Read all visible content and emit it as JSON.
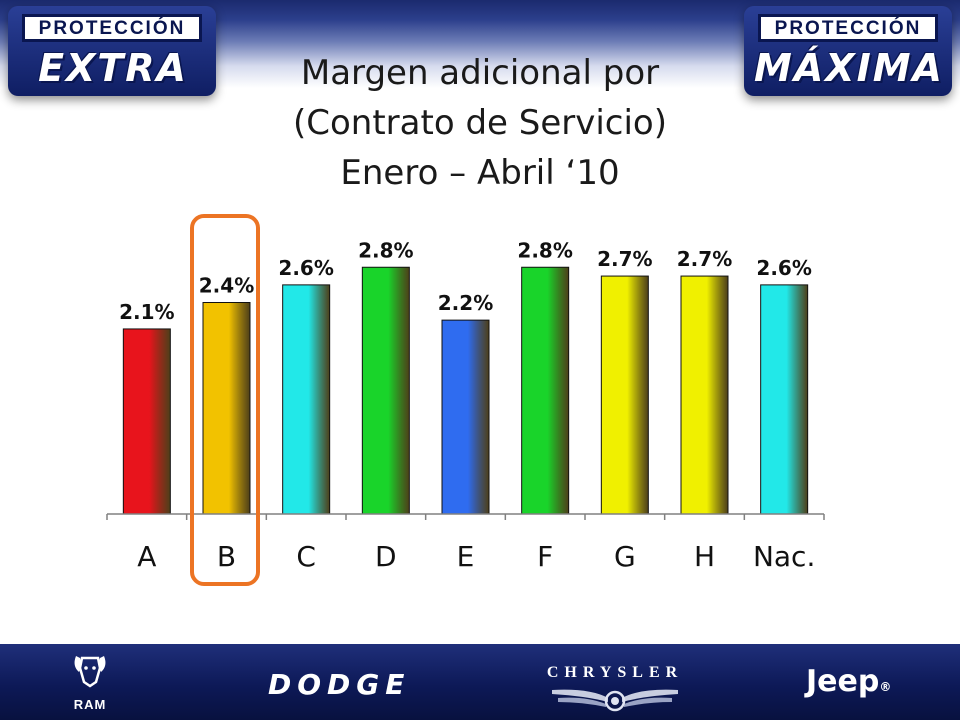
{
  "header": {
    "left_badge": {
      "tag": "PROTECCIÓN",
      "big": "EXTRA"
    },
    "right_badge": {
      "tag": "PROTECCIÓN",
      "big": "MÁXIMA"
    },
    "title_lines": [
      "Margen adicional por",
      "(Contrato de Servicio)",
      "Enero – Abril ‘10"
    ]
  },
  "chart_data": {
    "type": "bar",
    "categories": [
      "A",
      "B",
      "C",
      "D",
      "E",
      "F",
      "G",
      "H",
      "Nac."
    ],
    "values": [
      2.1,
      2.4,
      2.6,
      2.8,
      2.2,
      2.8,
      2.7,
      2.7,
      2.6
    ],
    "data_labels": [
      "2.1%",
      "2.4%",
      "2.6%",
      "2.8%",
      "2.2%",
      "2.8%",
      "2.7%",
      "2.7%",
      "2.6%"
    ],
    "bar_colors": [
      "#e8141c",
      "#f2c200",
      "#22e8e8",
      "#19d42a",
      "#2f6cf0",
      "#19d42a",
      "#f0f000",
      "#f0f000",
      "#22e8e8"
    ],
    "highlighted_category": "B",
    "highlight_color": "#ec7424",
    "ylim": [
      0,
      3.2
    ],
    "grid": false,
    "legend": "none",
    "title": "",
    "xlabel": "",
    "ylabel": ""
  },
  "footer": {
    "brands": [
      "RAM",
      "DODGE",
      "CHRYSLER",
      "Jeep"
    ],
    "jeep_mark": "®",
    "icons": [
      "ram-head-icon",
      "chrysler-wings-icon"
    ]
  }
}
